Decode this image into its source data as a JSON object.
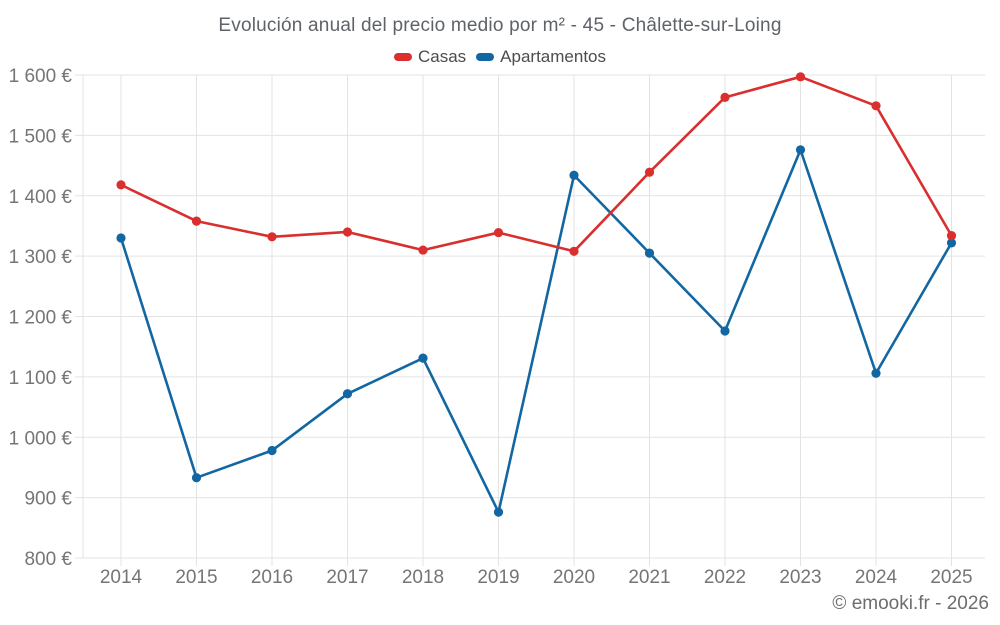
{
  "page": {
    "attribution": "© emooki.fr - 2026"
  },
  "chart_data": {
    "type": "line",
    "title": "Evolución anual del precio medio por m² - 45 - Châlette-sur-Loing",
    "categories": [
      "2014",
      "2015",
      "2016",
      "2017",
      "2018",
      "2019",
      "2020",
      "2021",
      "2022",
      "2023",
      "2024",
      "2025"
    ],
    "series": [
      {
        "name": "Casas",
        "color": "#d92f2f",
        "values": [
          1418,
          1358,
          1332,
          1340,
          1310,
          1339,
          1308,
          1439,
          1563,
          1597,
          1549,
          1334
        ]
      },
      {
        "name": "Apartamentos",
        "color": "#1267a2",
        "values": [
          1330,
          933,
          978,
          1072,
          1131,
          876,
          1434,
          1305,
          1176,
          1476,
          1106,
          1322
        ]
      }
    ],
    "xlabel": "",
    "ylabel": "",
    "ylim": [
      800,
      1600
    ],
    "yticks": [
      800,
      900,
      1000,
      1100,
      1200,
      1300,
      1400,
      1500,
      1600
    ],
    "ytick_labels": [
      "800 €",
      "900 €",
      "1 000 €",
      "1 100 €",
      "1 200 €",
      "1 300 €",
      "1 400 €",
      "1 500 €",
      "1 600 €"
    ],
    "grid": true,
    "legend_position": "top",
    "marker": "circle",
    "grid_color": "#e3e3e3",
    "tick_label_color": "#757575"
  }
}
